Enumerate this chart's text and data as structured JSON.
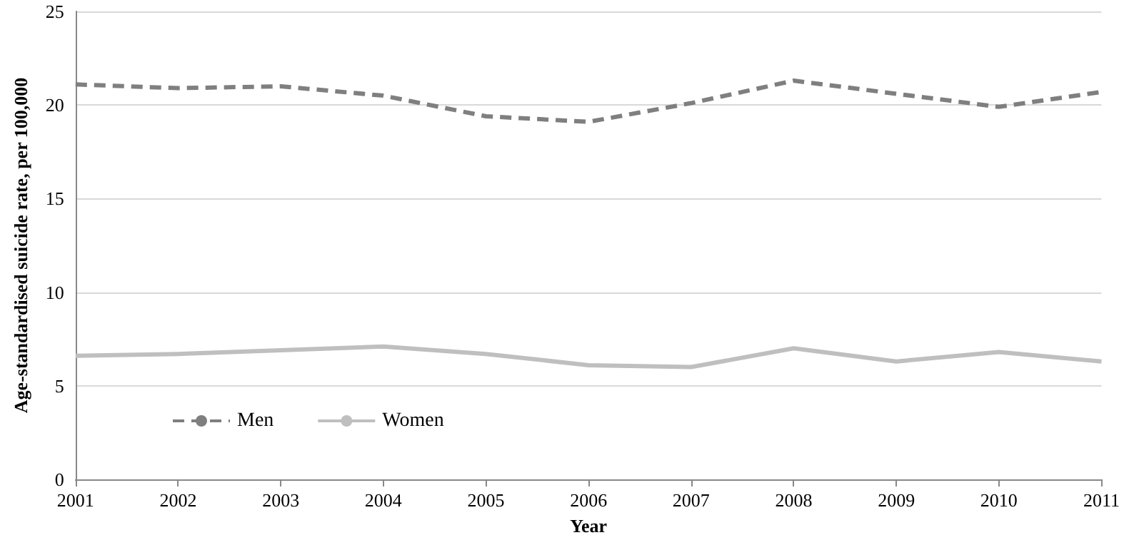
{
  "chart_data": {
    "type": "line",
    "xlabel": "Year",
    "ylabel": "Age-standardised suicide rate, per 100,000",
    "categories": [
      "2001",
      "2002",
      "2003",
      "2004",
      "2005",
      "2006",
      "2007",
      "2008",
      "2009",
      "2010",
      "2011"
    ],
    "series": [
      {
        "name": "Men",
        "color": "#7f7f7f",
        "line_style": "dashed",
        "values": [
          21.1,
          20.9,
          21.0,
          20.5,
          19.4,
          19.1,
          20.1,
          21.3,
          20.6,
          19.9,
          20.7
        ]
      },
      {
        "name": "Women",
        "color": "#bfbfbf",
        "line_style": "solid",
        "values": [
          6.6,
          6.7,
          6.9,
          7.1,
          6.7,
          6.1,
          6.0,
          7.0,
          6.3,
          6.8,
          6.3
        ]
      }
    ],
    "ylim": [
      0,
      25
    ],
    "yticks": [
      0,
      5,
      10,
      15,
      20,
      25
    ],
    "grid": "y",
    "legend": "bottom left",
    "marker": "none"
  }
}
